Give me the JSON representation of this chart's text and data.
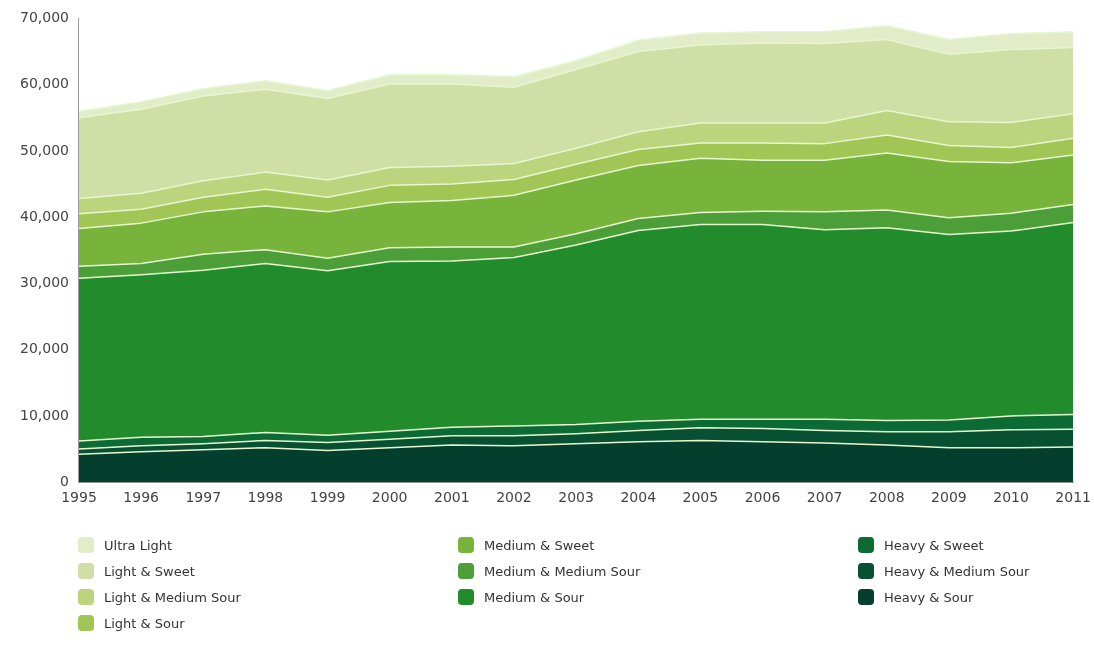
{
  "chart_data": {
    "type": "area",
    "stacked": true,
    "legend": "bottom",
    "x": [
      1995,
      1996,
      1997,
      1998,
      1999,
      2000,
      2001,
      2002,
      2003,
      2004,
      2005,
      2006,
      2007,
      2008,
      2009,
      2010,
      2011
    ],
    "xlim": [
      1995,
      2011
    ],
    "xticks": [
      1995,
      1996,
      1997,
      1998,
      1999,
      2000,
      2001,
      2002,
      2003,
      2004,
      2005,
      2006,
      2007,
      2008,
      2009,
      2010,
      2011
    ],
    "ylim": [
      0,
      70000
    ],
    "yticks": [
      0,
      {
        "value": 10000,
        "label": "10,000"
      },
      {
        "value": 20000,
        "label": "20,000"
      },
      {
        "value": 30000,
        "label": "30,000"
      },
      {
        "value": 40000,
        "label": "40,000"
      },
      {
        "value": 50000,
        "label": "50,000"
      },
      {
        "value": 60000,
        "label": "60,000"
      },
      {
        "value": 70000,
        "label": "70,000"
      }
    ],
    "series": [
      {
        "name": "Heavy & Sour",
        "color": "#043e2c",
        "values": [
          4200,
          4600,
          4900,
          5200,
          4800,
          5200,
          5600,
          5500,
          5800,
          6100,
          6300,
          6100,
          5900,
          5600,
          5200,
          5200,
          5300
        ]
      },
      {
        "name": "Heavy & Medium Sour",
        "color": "#075032",
        "values": [
          800,
          900,
          900,
          1100,
          1200,
          1300,
          1400,
          1500,
          1500,
          1700,
          1900,
          2000,
          1900,
          2000,
          2400,
          2700,
          2700
        ]
      },
      {
        "name": "Heavy & Sweet",
        "color": "#0c6b34",
        "values": [
          1200,
          1300,
          1100,
          1200,
          1100,
          1200,
          1300,
          1500,
          1400,
          1400,
          1300,
          1400,
          1700,
          1700,
          1800,
          2100,
          2200
        ]
      },
      {
        "name": "Medium & Sour",
        "color": "#228b2c",
        "values": [
          24600,
          24500,
          25100,
          25500,
          24800,
          25600,
          25100,
          25400,
          27100,
          28800,
          29400,
          29400,
          28600,
          29100,
          28000,
          27900,
          29000
        ]
      },
      {
        "name": "Medium & Medium Sour",
        "color": "#4c9e38",
        "values": [
          1800,
          1700,
          2400,
          2100,
          1900,
          2100,
          2100,
          1600,
          1700,
          1800,
          1800,
          2000,
          2700,
          2700,
          2500,
          2700,
          2700
        ]
      },
      {
        "name": "Medium & Sweet",
        "color": "#78b33c",
        "values": [
          5700,
          6100,
          6400,
          6600,
          7000,
          6800,
          7000,
          7800,
          8100,
          8000,
          8200,
          7700,
          7800,
          8600,
          8500,
          7600,
          7500
        ]
      },
      {
        "name": "Light & Sour",
        "color": "#a2c656",
        "values": [
          2200,
          2100,
          2200,
          2500,
          2200,
          2600,
          2500,
          2400,
          2400,
          2400,
          2300,
          2600,
          2500,
          2700,
          2400,
          2300,
          2500
        ]
      },
      {
        "name": "Light & Medium Sour",
        "color": "#bdd47e",
        "values": [
          2300,
          2400,
          2500,
          2600,
          2600,
          2700,
          2700,
          2400,
          2400,
          2700,
          3000,
          3000,
          3100,
          3700,
          3600,
          3800,
          3700
        ]
      },
      {
        "name": "Light & Sweet",
        "color": "#cfdfa6",
        "values": [
          12200,
          12700,
          12800,
          12500,
          12300,
          12600,
          12400,
          11500,
          11900,
          12100,
          11800,
          12100,
          12000,
          10700,
          10200,
          11000,
          10000
        ]
      },
      {
        "name": "Ultra Light",
        "color": "#e2ecc9",
        "values": [
          1000,
          1100,
          1100,
          1300,
          1200,
          1400,
          1400,
          1600,
          1300,
          1700,
          1800,
          1700,
          1800,
          2100,
          2200,
          2400,
          2400
        ]
      }
    ]
  }
}
